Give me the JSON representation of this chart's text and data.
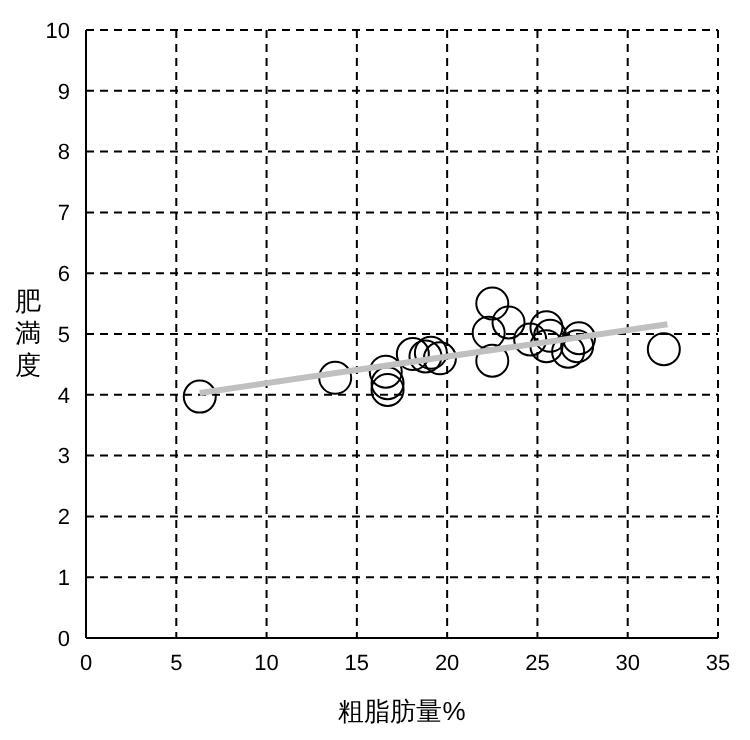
{
  "chart_data": {
    "type": "scatter",
    "xlabel": "粗脂肪量%",
    "ylabel": "肥満度",
    "xlim": [
      0,
      35
    ],
    "ylim": [
      0,
      10
    ],
    "xticks": [
      0,
      5,
      10,
      15,
      20,
      25,
      30,
      35
    ],
    "yticks": [
      0,
      1,
      2,
      3,
      4,
      5,
      6,
      7,
      8,
      9,
      10
    ],
    "grid": true,
    "marker": "circle",
    "series": [
      {
        "color": "#000000",
        "x": [
          6.3,
          13.8,
          16.6,
          16.7,
          16.7,
          18.1,
          19.1,
          19.6,
          18.8,
          22.5,
          22.3,
          22.5,
          23.4,
          24.6,
          25.5,
          25.5,
          25.7,
          26.7,
          27.3,
          27.2,
          32.0
        ],
        "values": [
          3.97,
          4.28,
          4.38,
          4.19,
          4.08,
          4.67,
          4.69,
          4.6,
          4.63,
          5.5,
          5.02,
          4.56,
          5.19,
          4.91,
          5.11,
          4.8,
          4.97,
          4.71,
          4.93,
          4.8,
          4.75
        ]
      },
      {
        "type": "line",
        "marker": "none",
        "color": "#c0c0c0",
        "x": [
          6.3,
          32.2
        ],
        "values": [
          4.03,
          5.16
        ]
      }
    ]
  }
}
